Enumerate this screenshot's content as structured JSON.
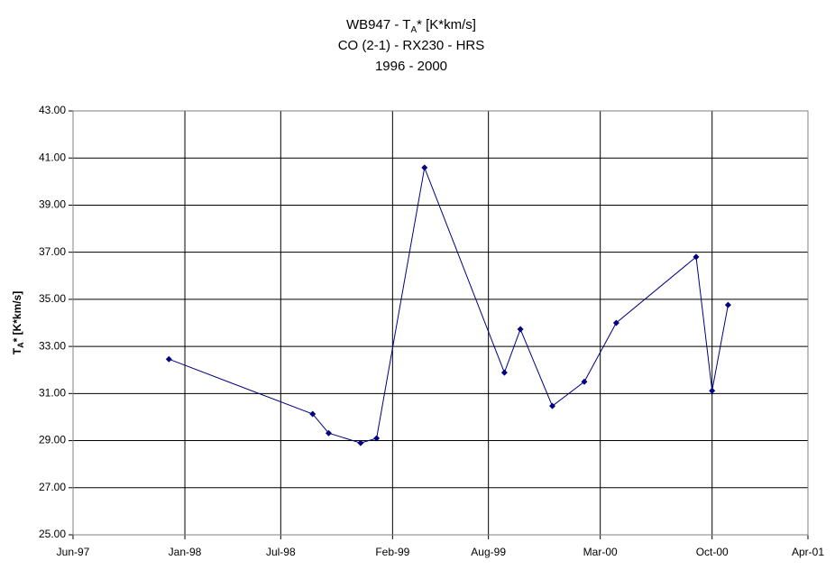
{
  "chart_data": {
    "type": "line",
    "title": [
      [
        "WB947 - T",
        "A",
        "* [K*km/s]"
      ],
      "CO (2-1) - RX230 - HRS",
      "1996 - 2000"
    ],
    "y_label": [
      "T",
      "A",
      "* [K*km/s]"
    ],
    "x": [
      "1997-12",
      "1998-09",
      "1998-10",
      "1998-12",
      "1999-01",
      "1999-04",
      "1999-09",
      "1999-10",
      "1999-12",
      "2000-02",
      "2000-04",
      "2000-09",
      "2000-10",
      "2000-11"
    ],
    "series": [
      {
        "color": "#000080",
        "values": [
          32.46,
          30.13,
          29.32,
          28.9,
          29.1,
          40.59,
          31.89,
          33.73,
          30.47,
          31.5,
          34.0,
          36.8,
          31.12,
          34.76
        ]
      }
    ],
    "xlim": [
      "1997-06",
      "2001-04"
    ],
    "xticks": [
      {
        "value": "1997-06",
        "label": "Jun-97"
      },
      {
        "value": "1998-01",
        "label": "Jan-98"
      },
      {
        "value": "1998-07",
        "label": "Jul-98"
      },
      {
        "value": "1999-02",
        "label": "Feb-99"
      },
      {
        "value": "1999-08",
        "label": "Aug-99"
      },
      {
        "value": "2000-03",
        "label": "Mar-00"
      },
      {
        "value": "2000-10",
        "label": "Oct-00"
      },
      {
        "value": "2001-04",
        "label": "Apr-01"
      }
    ],
    "ylim": [
      25,
      43
    ],
    "yticks": [
      {
        "value": 25,
        "label": "25.00"
      },
      {
        "value": 27,
        "label": "27.00"
      },
      {
        "value": 29,
        "label": "29.00"
      },
      {
        "value": 31,
        "label": "31.00"
      },
      {
        "value": 33,
        "label": "33.00"
      },
      {
        "value": 35,
        "label": "35.00"
      },
      {
        "value": 37,
        "label": "37.00"
      },
      {
        "value": 39,
        "label": "39.00"
      },
      {
        "value": 41,
        "label": "41.00"
      },
      {
        "value": 43,
        "label": "43.00"
      }
    ],
    "grid": true
  }
}
